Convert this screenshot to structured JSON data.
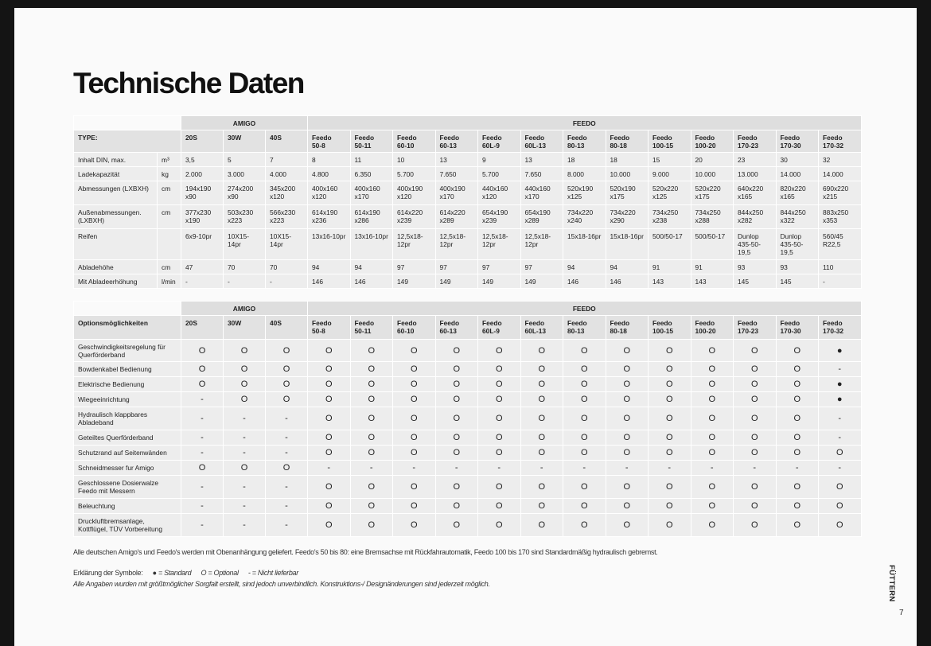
{
  "title": "Technische Daten",
  "spec_table": {
    "label": "TYPE:",
    "groups": [
      {
        "name": "AMIGO",
        "columns": [
          "20S",
          "30W",
          "40S"
        ]
      },
      {
        "name": "FEEDO",
        "columns": [
          "Feedo\n50-8",
          "Feedo\n50-11",
          "Feedo\n60-10",
          "Feedo\n60-13",
          "Feedo\n60L-9",
          "Feedo\n60L-13",
          "Feedo\n80-13",
          "Feedo\n80-18",
          "Feedo\n100-15",
          "Feedo\n100-20",
          "Feedo\n170-23",
          "Feedo\n170-30",
          "Feedo\n170-32"
        ]
      }
    ],
    "rows": [
      {
        "label": "Inhalt DIN, max.",
        "unit": "m³",
        "values": [
          "3,5",
          "5",
          "7",
          "8",
          "11",
          "10",
          "13",
          "9",
          "13",
          "18",
          "18",
          "15",
          "20",
          "23",
          "30",
          "32"
        ]
      },
      {
        "label": "Ladekapazität",
        "unit": "kg",
        "values": [
          "2.000",
          "3.000",
          "4.000",
          "4.800",
          "6.350",
          "5.700",
          "7.650",
          "5.700",
          "7.650",
          "8.000",
          "10.000",
          "9.000",
          "10.000",
          "13.000",
          "14.000",
          "14.000"
        ]
      },
      {
        "label": "Abmessungen (LXBXH)",
        "unit": "cm",
        "values": [
          "194x190\nx90",
          "274x200\nx90",
          "345x200\nx120",
          "400x160\nx120",
          "400x160\nx170",
          "400x190\nx120",
          "400x190\nx170",
          "440x160\nx120",
          "440x160\nx170",
          "520x190\nx125",
          "520x190\nx175",
          "520x220\nx125",
          "520x220\nx175",
          "640x220\nx165",
          "820x220\nx165",
          "690x220\nx215"
        ]
      },
      {
        "label": "Außenabmessungen.\n(LXBXH)",
        "unit": "cm",
        "values": [
          "377x230\nx190",
          "503x230\nx223",
          "566x230\nx223",
          "614x190\nx236",
          "614x190\nx286",
          "614x220\nx239",
          "614x220\nx289",
          "654x190\nx239",
          "654x190\nx289",
          "734x220\nx240",
          "734x220\nx290",
          "734x250\nx238",
          "734x250\nx288",
          "844x250\nx282",
          "844x250\nx322",
          "883x250\nx353"
        ]
      },
      {
        "label": "Reifen",
        "values": [
          "6x9-10pr",
          "10X15-14pr",
          "10X15-14pr",
          "13x16-10pr",
          "13x16-10pr",
          "12,5x18-\n12pr",
          "12,5x18-\n12pr",
          "12,5x18-\n12pr",
          "12,5x18-\n12pr",
          "15x18-16pr",
          "15x18-16pr",
          "500/50-17",
          "500/50-17",
          "Dunlop\n435-50-\n19,5",
          "Dunlop\n435-50-\n19,5",
          "560/45\nR22,5"
        ]
      },
      {
        "label": "Abladehöhe",
        "unit": "cm",
        "values": [
          "47",
          "70",
          "70",
          "94",
          "94",
          "97",
          "97",
          "97",
          "97",
          "94",
          "94",
          "91",
          "91",
          "93",
          "93",
          "110"
        ]
      },
      {
        "label": "Mit Abladeerhöhung",
        "unit": "l/min",
        "values": [
          "-",
          "-",
          "-",
          "146",
          "146",
          "149",
          "149",
          "149",
          "149",
          "146",
          "146",
          "143",
          "143",
          "145",
          "145",
          "-"
        ]
      }
    ]
  },
  "options_table": {
    "label": "Optionsmöglichkeiten",
    "groups": [
      {
        "name": "AMIGO",
        "columns": [
          "20S",
          "30W",
          "40S"
        ]
      },
      {
        "name": "FEEDO",
        "columns": [
          "Feedo\n50-8",
          "Feedo\n50-11",
          "Feedo\n60-10",
          "Feedo\n60-13",
          "Feedo\n60L-9",
          "Feedo\n60L-13",
          "Feedo\n80-13",
          "Feedo\n80-18",
          "Feedo\n100-15",
          "Feedo\n100-20",
          "Feedo\n170-23",
          "Feedo\n170-30",
          "Feedo\n170-32"
        ]
      }
    ],
    "rows": [
      {
        "label": "Geschwindigkeitsregelung für\nQuerförderband",
        "values": [
          "O",
          "O",
          "O",
          "O",
          "O",
          "O",
          "O",
          "O",
          "O",
          "O",
          "O",
          "O",
          "O",
          "O",
          "O",
          "●"
        ]
      },
      {
        "label": "Bowdenkabel Bedienung",
        "values": [
          "O",
          "O",
          "O",
          "O",
          "O",
          "O",
          "O",
          "O",
          "O",
          "O",
          "O",
          "O",
          "O",
          "O",
          "O",
          "-"
        ]
      },
      {
        "label": "Elektrische Bedienung",
        "values": [
          "O",
          "O",
          "O",
          "O",
          "O",
          "O",
          "O",
          "O",
          "O",
          "O",
          "O",
          "O",
          "O",
          "O",
          "O",
          "●"
        ]
      },
      {
        "label": "Wiegeeinrichtung",
        "values": [
          "-",
          "O",
          "O",
          "O",
          "O",
          "O",
          "O",
          "O",
          "O",
          "O",
          "O",
          "O",
          "O",
          "O",
          "O",
          "●"
        ]
      },
      {
        "label": "Hydraulisch klappbares\nAbladeband",
        "values": [
          "-",
          "-",
          "-",
          "O",
          "O",
          "O",
          "O",
          "O",
          "O",
          "O",
          "O",
          "O",
          "O",
          "O",
          "O",
          "-"
        ]
      },
      {
        "label": "Geteiltes Querförderband",
        "values": [
          "-",
          "-",
          "-",
          "O",
          "O",
          "O",
          "O",
          "O",
          "O",
          "O",
          "O",
          "O",
          "O",
          "O",
          "O",
          "-"
        ]
      },
      {
        "label": "Schutzrand auf Seitenwänden",
        "values": [
          "-",
          "-",
          "-",
          "O",
          "O",
          "O",
          "O",
          "O",
          "O",
          "O",
          "O",
          "O",
          "O",
          "O",
          "O",
          "O"
        ]
      },
      {
        "label": "Schneidmesser fur Amigo",
        "values": [
          "O",
          "O",
          "O",
          "-",
          "-",
          "-",
          "-",
          "-",
          "-",
          "-",
          "-",
          "-",
          "-",
          "-",
          "-",
          "-"
        ]
      },
      {
        "label": "Geschlossene Dosierwalze\nFeedo  mit Messern",
        "values": [
          "-",
          "-",
          "-",
          "O",
          "O",
          "O",
          "O",
          "O",
          "O",
          "O",
          "O",
          "O",
          "O",
          "O",
          "O",
          "O"
        ]
      },
      {
        "label": "Beleuchtung",
        "values": [
          "-",
          "-",
          "-",
          "O",
          "O",
          "O",
          "O",
          "O",
          "O",
          "O",
          "O",
          "O",
          "O",
          "O",
          "O",
          "O"
        ]
      },
      {
        "label": "Druckluftbremsanlage,\nKottflügel, TÜV Vorbereitung",
        "values": [
          "-",
          "-",
          "-",
          "O",
          "O",
          "O",
          "O",
          "O",
          "O",
          "O",
          "O",
          "O",
          "O",
          "O",
          "O",
          "O"
        ]
      }
    ]
  },
  "note": "Alle deutschen Amigo's und Feedo's werden mit Obenanhängung geliefert. Feedo's 50 bis 80: eine Bremsachse mit Rückfahrautomatik, Feedo 100 bis 170 sind Standardmäßig hydraulisch gebremst.",
  "legend": {
    "label": "Erklärung der Symbole:",
    "items": [
      "● = Standard",
      "O = Optional",
      "-  = Nicht lieferbar"
    ]
  },
  "disclaimer": "Alle Angaben wurden mit größtmöglicher Sorgfalt erstellt, sind jedoch unverbindlich. Konstruktions-/ Designänderungen sind jederzeit möglich.",
  "section": "FÜTTERN",
  "page_number": "7"
}
